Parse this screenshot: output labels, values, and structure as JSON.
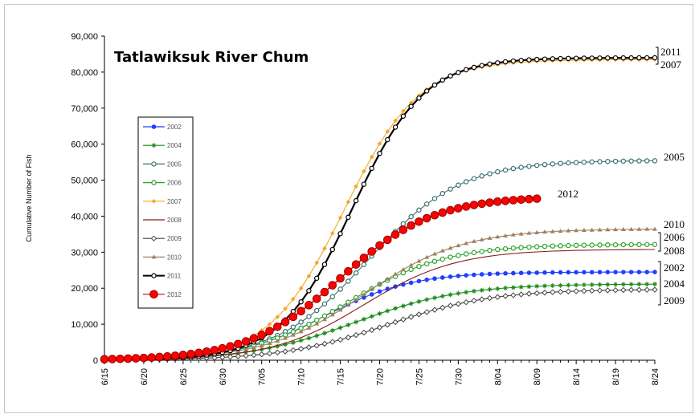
{
  "chart_data": {
    "type": "line",
    "title": "Tatlawiksuk River Chum",
    "xlabel": "",
    "ylabel": "Cumulative Number of Fish",
    "ylim": [
      0,
      90000
    ],
    "y_ticks": [
      "0",
      "10,000",
      "20,000",
      "30,000",
      "40,000",
      "50,000",
      "60,000",
      "70,000",
      "80,000",
      "90,000"
    ],
    "x_ticks": [
      "6/15",
      "6/20",
      "6/25",
      "6/30",
      "7/05",
      "7/10",
      "7/15",
      "7/20",
      "7/25",
      "7/30",
      "8/04",
      "8/09",
      "8/14",
      "8/19",
      "8/24"
    ],
    "x_range_days": [
      0,
      70
    ],
    "legend_position": "left",
    "series": [
      {
        "name": "2002",
        "color": "#1f3fff",
        "marker": "circle",
        "final": 24500,
        "mid": 28,
        "k": 0.18,
        "end_day": 70,
        "offset": 0
      },
      {
        "name": "2004",
        "color": "#1b8a1b",
        "marker": "star",
        "final": 21200,
        "mid": 32,
        "k": 0.15,
        "end_day": 70,
        "offset": 0
      },
      {
        "name": "2005",
        "color": "#3a6f6f",
        "marker": "circle-open",
        "final": 55500,
        "mid": 33.5,
        "k": 0.17,
        "end_day": 70,
        "offset": 0
      },
      {
        "name": "2006",
        "color": "#29a329",
        "marker": "circle-open",
        "final": 32200,
        "mid": 31,
        "k": 0.16,
        "end_day": 70,
        "offset": 0
      },
      {
        "name": "2007",
        "color": "#f5a623",
        "marker": "diamond",
        "final": 83500,
        "mid": 30.5,
        "k": 0.21,
        "end_day": 70,
        "offset": 0
      },
      {
        "name": "2008",
        "color": "#8b1a1a",
        "marker": "none",
        "final": 30800,
        "mid": 33,
        "k": 0.17,
        "end_day": 70,
        "offset": 0
      },
      {
        "name": "2009",
        "color": "#444444",
        "marker": "diamond-open",
        "final": 19700,
        "mid": 36,
        "k": 0.15,
        "end_day": 70,
        "offset": 0
      },
      {
        "name": "2010",
        "color": "#a08060",
        "marker": "triangle",
        "final": 36500,
        "mid": 33,
        "k": 0.16,
        "end_day": 70,
        "offset": 0
      },
      {
        "name": "2011",
        "color": "#000000",
        "marker": "circle-open",
        "final": 84000,
        "mid": 31.5,
        "k": 0.22,
        "end_day": 70,
        "offset": 0
      },
      {
        "name": "2012",
        "color": "#dd0000",
        "marker": "circle-big",
        "final": 45500,
        "mid": 30,
        "k": 0.17,
        "end_day": 55,
        "offset": 0
      }
    ],
    "annotations": [
      {
        "text": "2011",
        "series": "2011"
      },
      {
        "text": "2007",
        "series": "2007"
      },
      {
        "text": "2005",
        "series": "2005"
      },
      {
        "text": "2012",
        "series": "2012"
      },
      {
        "text": "2010",
        "series": "2010"
      },
      {
        "text": "2006",
        "series": "2006"
      },
      {
        "text": "2008",
        "series": "2008"
      },
      {
        "text": "2002",
        "series": "2002"
      },
      {
        "text": "2004",
        "series": "2004"
      },
      {
        "text": "2009",
        "series": "2009"
      }
    ]
  }
}
